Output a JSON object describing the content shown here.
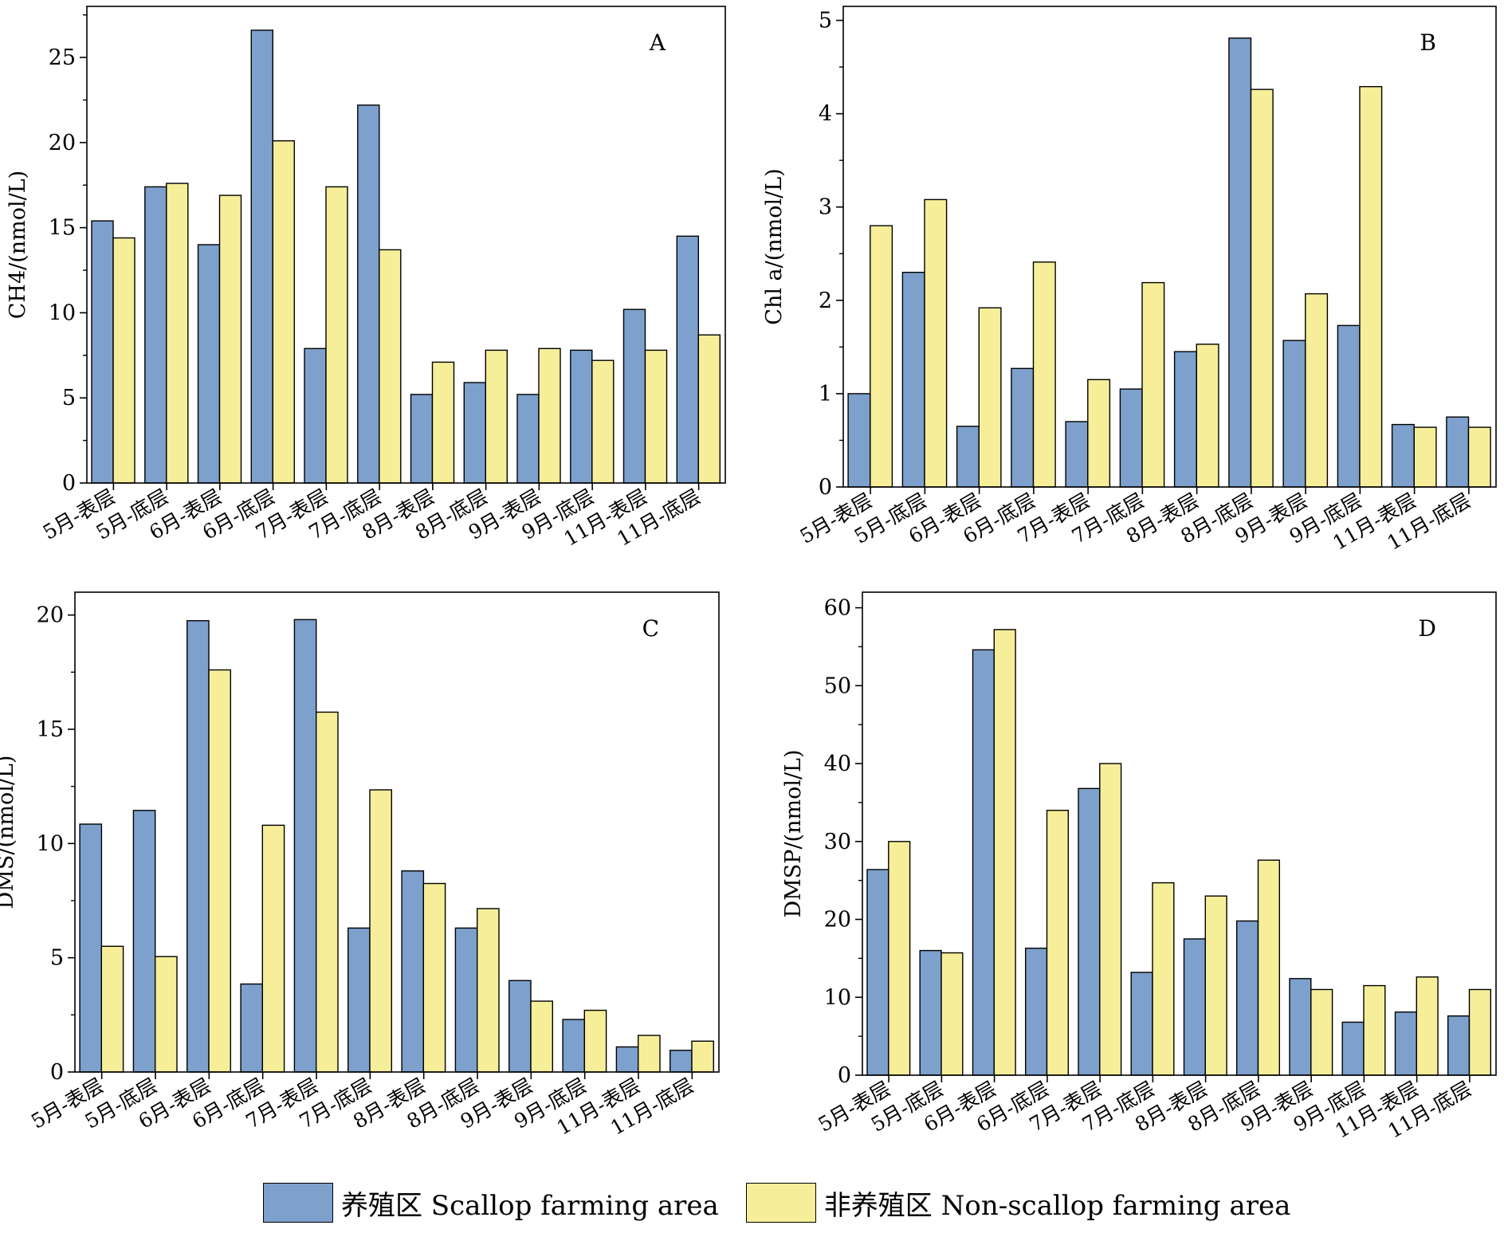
{
  "colors": {
    "farming": "#7da0cc",
    "non_farming": "#f6ee99",
    "axis": "#000000"
  },
  "legend": {
    "farming_label": "养殖区 Scallop farming area",
    "non_farming_label": "非养殖区 Non-scallop farming area"
  },
  "chart_data": [
    {
      "type": "bar",
      "panel_label": "A",
      "ylabel": "CH4/(nmol/L)",
      "ylim": [
        0,
        28
      ],
      "yticks": [
        0,
        5,
        10,
        15,
        20,
        25
      ],
      "categories": [
        "5月-表层",
        "5月-底层",
        "6月-表层",
        "6月-底层",
        "7月-表层",
        "7月-底层",
        "8月-表层",
        "8月-底层",
        "9月-表层",
        "9月-底层",
        "11月-表层",
        "11月-底层"
      ],
      "series": [
        {
          "name": "养殖区 Scallop farming area",
          "values": [
            15.4,
            17.4,
            14.0,
            26.6,
            7.9,
            22.2,
            5.2,
            5.9,
            5.2,
            7.8,
            10.2,
            14.5
          ]
        },
        {
          "name": "非养殖区 Non-scallop farming area",
          "values": [
            14.4,
            17.6,
            16.9,
            20.1,
            17.4,
            13.7,
            7.1,
            7.8,
            7.9,
            7.2,
            7.8,
            8.7
          ]
        }
      ]
    },
    {
      "type": "bar",
      "panel_label": "B",
      "ylabel": "Chl a/(nmol/L)",
      "ylim": [
        0,
        5.15
      ],
      "yticks": [
        0,
        1,
        2,
        3,
        4,
        5
      ],
      "categories": [
        "5月-表层",
        "5月-底层",
        "6月-表层",
        "6月-底层",
        "7月-表层",
        "7月-底层",
        "8月-表层",
        "8月-底层",
        "9月-表层",
        "9月-底层",
        "11月-表层",
        "11月-底层"
      ],
      "series": [
        {
          "name": "养殖区 Scallop farming area",
          "values": [
            1.0,
            2.3,
            0.65,
            1.27,
            0.7,
            1.05,
            1.45,
            4.81,
            1.57,
            1.73,
            0.67,
            0.75
          ]
        },
        {
          "name": "非养殖区 Non-scallop farming area",
          "values": [
            2.8,
            3.08,
            1.92,
            2.41,
            1.15,
            2.19,
            1.53,
            4.26,
            2.07,
            4.29,
            0.64,
            0.64
          ]
        }
      ]
    },
    {
      "type": "bar",
      "panel_label": "C",
      "ylabel": "DMS/(nmol/L)",
      "ylim": [
        0,
        21
      ],
      "yticks": [
        0,
        5,
        10,
        15,
        20
      ],
      "categories": [
        "5月-表层",
        "5月-底层",
        "6月-表层",
        "6月-底层",
        "7月-表层",
        "7月-底层",
        "8月-表层",
        "8月-底层",
        "9月-表层",
        "9月-底层",
        "11月-表层",
        "11月-底层"
      ],
      "series": [
        {
          "name": "养殖区 Scallop farming area",
          "values": [
            10.85,
            11.45,
            19.75,
            3.85,
            19.8,
            6.3,
            8.8,
            6.3,
            4.0,
            2.3,
            1.1,
            0.95
          ]
        },
        {
          "name": "非养殖区 Non-scallop farming area",
          "values": [
            5.5,
            5.05,
            17.6,
            10.8,
            15.75,
            12.35,
            8.25,
            7.15,
            3.1,
            2.7,
            1.6,
            1.35
          ]
        }
      ]
    },
    {
      "type": "bar",
      "panel_label": "D",
      "ylabel": "DMSP/(nmol/L)",
      "ylim": [
        0,
        62
      ],
      "yticks": [
        0,
        10,
        20,
        30,
        40,
        50,
        60
      ],
      "categories": [
        "5月-表层",
        "5月-底层",
        "6月-表层",
        "6月-底层",
        "7月-表层",
        "7月-底层",
        "8月-表层",
        "8月-底层",
        "9月-表层",
        "9月-底层",
        "11月-表层",
        "11月-底层"
      ],
      "series": [
        {
          "name": "养殖区 Scallop farming area",
          "values": [
            26.4,
            16.0,
            54.6,
            16.3,
            36.8,
            13.2,
            17.5,
            19.8,
            12.4,
            6.8,
            8.1,
            7.6
          ]
        },
        {
          "name": "非养殖区 Non-scallop farming area",
          "values": [
            30.0,
            15.7,
            57.2,
            34.0,
            40.0,
            24.7,
            23.0,
            27.6,
            11.0,
            11.5,
            12.6,
            11.0
          ]
        }
      ]
    }
  ]
}
